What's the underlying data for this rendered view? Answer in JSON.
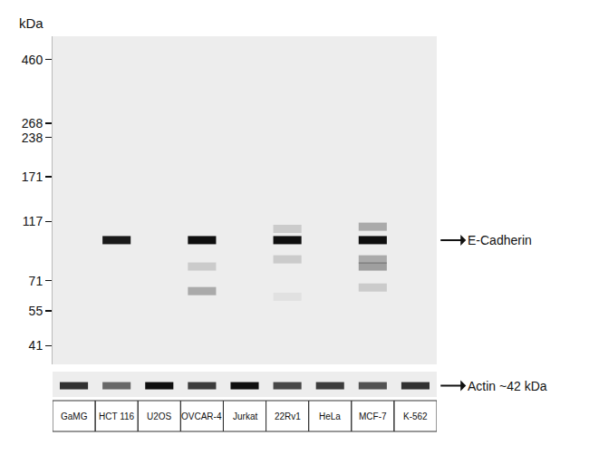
{
  "chart_data": {
    "type": "western_blot",
    "y_label": "kDa",
    "categories": [
      "GaMG",
      "HCT 116",
      "U2OS",
      "OVCAR-4",
      "Jurkat",
      "22Rv1",
      "HeLa",
      "MCF-7",
      "K-562"
    ],
    "log": "y",
    "grid": false,
    "ylim": [
      35,
      560
    ],
    "yticks": [
      460,
      268,
      238,
      171,
      117,
      71,
      55,
      41
    ],
    "bands": [
      {
        "lane": "HCT 116",
        "kda": 100,
        "intensity": 0.95
      },
      {
        "lane": "OVCAR-4",
        "kda": 100,
        "intensity": 1.0
      },
      {
        "lane": "OVCAR-4",
        "kda": 80,
        "intensity": 0.15
      },
      {
        "lane": "OVCAR-4",
        "kda": 65,
        "intensity": 0.3
      },
      {
        "lane": "22Rv1",
        "kda": 110,
        "intensity": 0.15
      },
      {
        "lane": "22Rv1",
        "kda": 100,
        "intensity": 1.0
      },
      {
        "lane": "22Rv1",
        "kda": 85,
        "intensity": 0.15
      },
      {
        "lane": "22Rv1",
        "kda": 62,
        "intensity": 0.05
      },
      {
        "lane": "MCF-7",
        "kda": 112,
        "intensity": 0.3
      },
      {
        "lane": "MCF-7",
        "kda": 100,
        "intensity": 1.0
      },
      {
        "lane": "MCF-7",
        "kda": 85,
        "intensity": 0.3
      },
      {
        "lane": "MCF-7",
        "kda": 80,
        "intensity": 0.35
      },
      {
        "lane": "MCF-7",
        "kda": 67,
        "intensity": 0.15
      }
    ],
    "y2lim": [
      38,
      47
    ],
    "y2ticks": [],
    "loading_bands": [
      {
        "lane": "GaMG",
        "kda": 42,
        "intensity": 0.85
      },
      {
        "lane": "HCT 116",
        "kda": 42,
        "intensity": 0.6
      },
      {
        "lane": "U2OS",
        "kda": 42,
        "intensity": 1.0
      },
      {
        "lane": "OVCAR-4",
        "kda": 42,
        "intensity": 0.8
      },
      {
        "lane": "Jurkat",
        "kda": 42,
        "intensity": 1.0
      },
      {
        "lane": "22Rv1",
        "kda": 42,
        "intensity": 0.75
      },
      {
        "lane": "HeLa",
        "kda": 42,
        "intensity": 0.8
      },
      {
        "lane": "MCF-7",
        "kda": 42,
        "intensity": 0.7
      },
      {
        "lane": "K-562",
        "kda": 42,
        "intensity": 0.85
      }
    ],
    "annotations": [
      {
        "text": "E-Cadherin",
        "kda": 100,
        "axis": "y"
      },
      {
        "text": "Actin ~42 kDa",
        "kda": 42,
        "axis": "y2"
      }
    ]
  }
}
